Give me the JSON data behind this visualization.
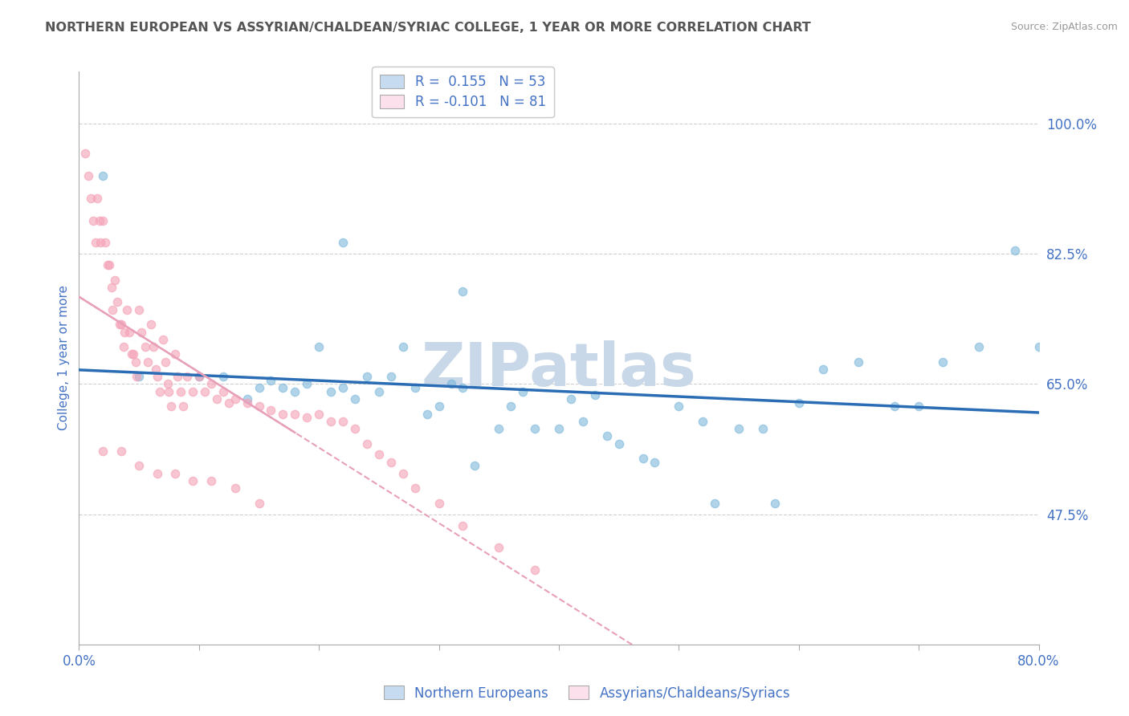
{
  "title": "NORTHERN EUROPEAN VS ASSYRIAN/CHALDEAN/SYRIAC COLLEGE, 1 YEAR OR MORE CORRELATION CHART",
  "source": "Source: ZipAtlas.com",
  "ylabel": "College, 1 year or more",
  "watermark": "ZIPatlas",
  "legend_entry1": "R =  0.155   N = 53",
  "legend_entry2": "R = -0.101   N = 81",
  "legend_label1": "Northern Europeans",
  "legend_label2": "Assyrians/Chaldeans/Syriacs",
  "blue_color": "#7db8db",
  "pink_color": "#f4a0b5",
  "blue_fill": "#c6dbef",
  "pink_fill": "#fce0ec",
  "trend_blue": "#2a6db5",
  "trend_pink": "#e8a0b8",
  "xlim": [
    0.0,
    0.8
  ],
  "ylim": [
    0.3,
    1.07
  ],
  "yticks": [
    0.475,
    0.65,
    0.825,
    1.0
  ],
  "ytick_labels": [
    "47.5%",
    "65.0%",
    "82.5%",
    "100.0%"
  ],
  "xticks": [
    0.0,
    0.1,
    0.2,
    0.3,
    0.4,
    0.5,
    0.6,
    0.7,
    0.8
  ],
  "xtick_labels": [
    "0.0%",
    "",
    "",
    "",
    "",
    "",
    "",
    "",
    "80.0%"
  ],
  "blue_x": [
    0.02,
    0.22,
    0.32,
    0.05,
    0.12,
    0.15,
    0.16,
    0.18,
    0.2,
    0.22,
    0.23,
    0.24,
    0.25,
    0.27,
    0.28,
    0.3,
    0.31,
    0.32,
    0.33,
    0.35,
    0.36,
    0.38,
    0.4,
    0.42,
    0.43,
    0.45,
    0.48,
    0.5,
    0.52,
    0.55,
    0.57,
    0.6,
    0.62,
    0.65,
    0.68,
    0.7,
    0.72,
    0.75,
    0.78,
    0.8,
    0.1,
    0.14,
    0.17,
    0.19,
    0.21,
    0.26,
    0.29,
    0.37,
    0.41,
    0.44,
    0.47,
    0.53,
    0.58
  ],
  "blue_y": [
    0.93,
    0.84,
    0.775,
    0.66,
    0.66,
    0.645,
    0.655,
    0.64,
    0.7,
    0.645,
    0.63,
    0.66,
    0.64,
    0.7,
    0.645,
    0.62,
    0.65,
    0.645,
    0.54,
    0.59,
    0.62,
    0.59,
    0.59,
    0.6,
    0.635,
    0.57,
    0.545,
    0.62,
    0.6,
    0.59,
    0.59,
    0.625,
    0.67,
    0.68,
    0.62,
    0.62,
    0.68,
    0.7,
    0.83,
    0.7,
    0.66,
    0.63,
    0.645,
    0.65,
    0.64,
    0.66,
    0.61,
    0.64,
    0.63,
    0.58,
    0.55,
    0.49,
    0.49
  ],
  "pink_x": [
    0.005,
    0.008,
    0.01,
    0.012,
    0.014,
    0.015,
    0.017,
    0.018,
    0.02,
    0.022,
    0.024,
    0.025,
    0.027,
    0.028,
    0.03,
    0.032,
    0.034,
    0.035,
    0.037,
    0.038,
    0.04,
    0.042,
    0.044,
    0.045,
    0.047,
    0.048,
    0.05,
    0.052,
    0.055,
    0.057,
    0.06,
    0.062,
    0.064,
    0.065,
    0.067,
    0.07,
    0.072,
    0.074,
    0.075,
    0.077,
    0.08,
    0.082,
    0.085,
    0.087,
    0.09,
    0.095,
    0.1,
    0.105,
    0.11,
    0.115,
    0.12,
    0.125,
    0.13,
    0.14,
    0.15,
    0.16,
    0.17,
    0.18,
    0.19,
    0.2,
    0.21,
    0.22,
    0.23,
    0.24,
    0.25,
    0.26,
    0.27,
    0.28,
    0.3,
    0.32,
    0.35,
    0.38,
    0.02,
    0.035,
    0.05,
    0.065,
    0.08,
    0.095,
    0.11,
    0.13,
    0.15
  ],
  "pink_y": [
    0.96,
    0.93,
    0.9,
    0.87,
    0.84,
    0.9,
    0.87,
    0.84,
    0.87,
    0.84,
    0.81,
    0.81,
    0.78,
    0.75,
    0.79,
    0.76,
    0.73,
    0.73,
    0.7,
    0.72,
    0.75,
    0.72,
    0.69,
    0.69,
    0.68,
    0.66,
    0.75,
    0.72,
    0.7,
    0.68,
    0.73,
    0.7,
    0.67,
    0.66,
    0.64,
    0.71,
    0.68,
    0.65,
    0.64,
    0.62,
    0.69,
    0.66,
    0.64,
    0.62,
    0.66,
    0.64,
    0.66,
    0.64,
    0.65,
    0.63,
    0.64,
    0.625,
    0.63,
    0.625,
    0.62,
    0.615,
    0.61,
    0.61,
    0.605,
    0.61,
    0.6,
    0.6,
    0.59,
    0.57,
    0.555,
    0.545,
    0.53,
    0.51,
    0.49,
    0.46,
    0.43,
    0.4,
    0.56,
    0.56,
    0.54,
    0.53,
    0.53,
    0.52,
    0.52,
    0.51,
    0.49
  ],
  "text_color": "#4472c4",
  "title_color": "#555555",
  "grid_color": "#d0d0d0",
  "watermark_color": "#c8d8e8"
}
